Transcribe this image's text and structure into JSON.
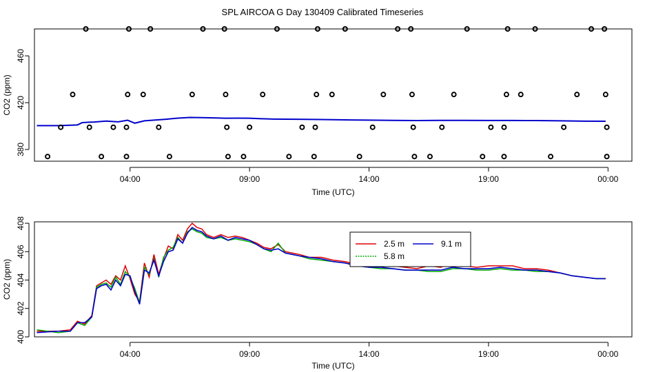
{
  "title": "SPL AIRCOA G  Day 130409  Calibrated Timeseries",
  "chart_data": [
    {
      "type": "scatter",
      "xlabel": "Time (UTC)",
      "ylabel": "CO2 (ppm)",
      "xlim": [
        0,
        25
      ],
      "ylim": [
        370,
        483
      ],
      "x_ticks": [
        4,
        9,
        14,
        19,
        24
      ],
      "x_tick_labels": [
        "04:00",
        "09:00",
        "14:00",
        "19:00",
        "00:00"
      ],
      "y_ticks": [
        380,
        420,
        460
      ],
      "series": [
        {
          "line_x": [
            0.1,
            1,
            1.8,
            2,
            2.5,
            3,
            3.5,
            3.9,
            4.2,
            4.6,
            5,
            5.5,
            6,
            6.5,
            7,
            7.5,
            8,
            8.5,
            9,
            9.5,
            10,
            11,
            12,
            13,
            14,
            15,
            16,
            17,
            18,
            19,
            20,
            21,
            22,
            23,
            23.9
          ],
          "line_y": [
            400.4,
            400.4,
            401,
            403,
            403.5,
            404.3,
            403.6,
            405,
            402.5,
            404.5,
            405.1,
            405.8,
            406.8,
            407.4,
            407.2,
            407,
            406.7,
            406.8,
            406.7,
            406.3,
            406,
            405.8,
            405.6,
            405.3,
            405.1,
            404.9,
            404.7,
            404.9,
            404.9,
            404.8,
            404.8,
            404.7,
            404.5,
            404.2,
            404.1
          ],
          "points": [
            [
              0.55,
              374
            ],
            [
              2.8,
              374
            ],
            [
              3.85,
              374
            ],
            [
              5.65,
              374
            ],
            [
              8.1,
              374
            ],
            [
              8.75,
              374
            ],
            [
              10.65,
              374
            ],
            [
              11.7,
              374
            ],
            [
              13.6,
              374
            ],
            [
              15.9,
              374
            ],
            [
              16.55,
              374
            ],
            [
              18.75,
              374
            ],
            [
              19.65,
              374
            ],
            [
              21.6,
              374
            ],
            [
              23.95,
              374
            ],
            [
              1.1,
              399
            ],
            [
              2.3,
              399
            ],
            [
              3.3,
              399
            ],
            [
              3.85,
              399
            ],
            [
              5.2,
              399
            ],
            [
              8.05,
              399
            ],
            [
              9.0,
              399
            ],
            [
              11.2,
              399
            ],
            [
              11.75,
              399
            ],
            [
              14.15,
              399
            ],
            [
              15.85,
              399
            ],
            [
              17.05,
              399
            ],
            [
              19.1,
              399
            ],
            [
              19.65,
              399
            ],
            [
              22.15,
              399
            ],
            [
              23.95,
              399
            ],
            [
              1.6,
              427
            ],
            [
              3.9,
              427
            ],
            [
              4.55,
              427
            ],
            [
              6.6,
              427
            ],
            [
              8.0,
              427
            ],
            [
              9.55,
              427
            ],
            [
              11.8,
              427
            ],
            [
              12.45,
              427
            ],
            [
              14.6,
              427
            ],
            [
              15.8,
              427
            ],
            [
              17.55,
              427
            ],
            [
              19.75,
              427
            ],
            [
              20.35,
              427
            ],
            [
              22.7,
              427
            ],
            [
              23.9,
              427
            ],
            [
              2.15,
              483
            ],
            [
              3.95,
              483
            ],
            [
              4.85,
              483
            ],
            [
              7.05,
              483
            ],
            [
              7.95,
              483
            ],
            [
              10.15,
              483
            ],
            [
              11.85,
              483
            ],
            [
              13.0,
              483
            ],
            [
              15.2,
              483
            ],
            [
              15.75,
              483
            ],
            [
              18.1,
              483
            ],
            [
              19.8,
              483
            ],
            [
              20.95,
              483
            ],
            [
              23.3,
              483
            ],
            [
              23.85,
              483
            ]
          ]
        }
      ]
    },
    {
      "type": "line",
      "xlabel": "Time (UTC)",
      "ylabel": "CO2 (ppm)",
      "xlim": [
        0,
        25
      ],
      "ylim": [
        400,
        408.1
      ],
      "x_ticks": [
        4,
        9,
        14,
        19,
        24
      ],
      "x_tick_labels": [
        "04:00",
        "09:00",
        "14:00",
        "19:00",
        "00:00"
      ],
      "y_ticks": [
        400,
        402,
        404,
        406,
        408
      ],
      "legend": {
        "position": "top-right"
      },
      "series": [
        {
          "name": "2.5 m",
          "color": "#dd0000",
          "x": [
            0.1,
            1,
            1.5,
            1.8,
            2.1,
            2.4,
            2.6,
            2.8,
            3.0,
            3.2,
            3.4,
            3.6,
            3.8,
            4.0,
            4.2,
            4.4,
            4.6,
            4.8,
            5.0,
            5.2,
            5.4,
            5.6,
            5.8,
            6.0,
            6.2,
            6.4,
            6.6,
            6.8,
            7.0,
            7.2,
            7.5,
            7.8,
            8.1,
            8.4,
            8.7,
            9.0,
            9.3,
            9.6,
            9.9,
            10.2,
            10.5,
            10.8,
            11.1,
            11.5,
            12,
            12.5,
            13,
            13.5,
            14,
            14.5,
            15,
            15.5,
            16,
            16.5,
            17,
            17.5,
            18,
            18.5,
            19,
            19.5,
            20,
            20.5,
            21,
            21.5,
            22,
            22.5,
            23,
            23.5,
            23.9
          ],
          "y": [
            400.4,
            400.4,
            400.5,
            401.1,
            400.9,
            401.5,
            403.6,
            403.8,
            404.0,
            403.7,
            404.3,
            404.0,
            405.0,
            404.1,
            403.0,
            402.5,
            405.2,
            404.2,
            405.8,
            404.4,
            405.5,
            406.4,
            406.2,
            407.2,
            406.8,
            407.6,
            408.0,
            407.7,
            407.6,
            407.2,
            407.0,
            407.2,
            407.0,
            407.1,
            407.0,
            406.8,
            406.6,
            406.3,
            406.2,
            406.5,
            406.0,
            405.9,
            405.8,
            405.6,
            405.6,
            405.4,
            405.3,
            405.1,
            405.0,
            405.1,
            405.0,
            404.9,
            404.8,
            405.0,
            404.9,
            405.2,
            405.0,
            404.9,
            405.0,
            405.0,
            405.0,
            404.8,
            404.8,
            404.7,
            404.5,
            404.3,
            404.2,
            404.1,
            404.1
          ]
        },
        {
          "name": "5.8 m",
          "color": "#00aa00",
          "x": [
            0.1,
            1,
            1.5,
            1.8,
            2.1,
            2.4,
            2.6,
            2.8,
            3.0,
            3.2,
            3.4,
            3.6,
            3.8,
            4.0,
            4.2,
            4.4,
            4.6,
            4.8,
            5.0,
            5.2,
            5.4,
            5.6,
            5.8,
            6.0,
            6.2,
            6.4,
            6.6,
            6.8,
            7.0,
            7.2,
            7.5,
            7.8,
            8.1,
            8.4,
            8.7,
            9.0,
            9.3,
            9.6,
            9.9,
            10.2,
            10.5,
            10.8,
            11.1,
            11.5,
            12,
            12.5,
            13,
            13.5,
            14,
            14.5,
            15,
            15.5,
            16,
            16.5,
            17,
            17.5,
            18,
            18.5,
            19,
            19.5,
            20,
            20.5,
            21,
            21.5,
            22,
            22.5,
            23,
            23.5,
            23.9
          ],
          "y": [
            400.5,
            400.3,
            400.4,
            401.0,
            400.8,
            401.4,
            403.5,
            403.7,
            403.8,
            403.5,
            404.2,
            403.7,
            404.6,
            404.2,
            403.4,
            402.4,
            404.9,
            404.4,
            405.5,
            404.2,
            405.6,
            406.1,
            406.3,
            407.0,
            406.6,
            407.4,
            407.6,
            407.4,
            407.3,
            407.0,
            406.9,
            407.0,
            406.8,
            406.9,
            406.8,
            406.7,
            406.5,
            406.2,
            406.0,
            406.6,
            405.9,
            405.8,
            405.7,
            405.5,
            405.4,
            405.3,
            405.2,
            405.0,
            404.9,
            404.8,
            404.8,
            404.7,
            404.7,
            404.6,
            404.6,
            404.8,
            404.8,
            404.7,
            404.7,
            404.8,
            404.7,
            404.7,
            404.6,
            404.6,
            404.5,
            404.3,
            404.2,
            404.1,
            404.1
          ]
        },
        {
          "name": "9.1 m",
          "color": "#0000cc",
          "x": [
            0.1,
            1,
            1.5,
            1.8,
            2.1,
            2.4,
            2.6,
            2.8,
            3.0,
            3.2,
            3.4,
            3.6,
            3.8,
            4.0,
            4.2,
            4.4,
            4.6,
            4.8,
            5.0,
            5.2,
            5.4,
            5.6,
            5.8,
            6.0,
            6.2,
            6.4,
            6.6,
            6.8,
            7.0,
            7.2,
            7.5,
            7.8,
            8.1,
            8.4,
            8.7,
            9.0,
            9.3,
            9.6,
            9.9,
            10.2,
            10.5,
            10.8,
            11.1,
            11.5,
            12,
            12.5,
            13,
            13.5,
            14,
            14.5,
            15,
            15.5,
            16,
            16.5,
            17,
            17.5,
            18,
            18.5,
            19,
            19.5,
            20,
            20.5,
            21,
            21.5,
            22,
            22.5,
            23,
            23.5,
            23.9
          ],
          "y": [
            400.3,
            400.4,
            400.4,
            401.0,
            401.0,
            401.4,
            403.4,
            403.6,
            403.7,
            403.3,
            404.0,
            403.6,
            404.4,
            404.3,
            403.2,
            402.3,
            404.7,
            404.5,
            405.4,
            404.3,
            405.3,
            406.0,
            406.1,
            406.9,
            406.6,
            407.3,
            407.7,
            407.5,
            407.4,
            407.1,
            406.9,
            407.1,
            406.8,
            407.0,
            406.9,
            406.8,
            406.5,
            406.2,
            406.1,
            406.2,
            405.9,
            405.8,
            405.7,
            405.6,
            405.5,
            405.3,
            405.2,
            405.0,
            404.9,
            404.9,
            404.8,
            404.7,
            404.7,
            404.7,
            404.7,
            404.9,
            404.8,
            404.8,
            404.8,
            404.9,
            404.8,
            404.7,
            404.7,
            404.6,
            404.5,
            404.3,
            404.2,
            404.1,
            404.1
          ]
        }
      ]
    }
  ]
}
